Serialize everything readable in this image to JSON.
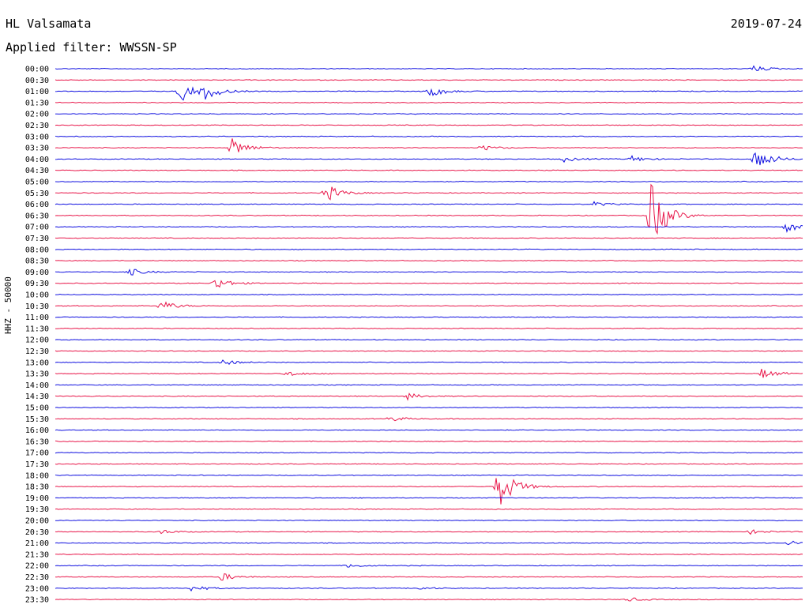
{
  "header": {
    "station": "HL Valsamata",
    "filter": "Applied filter: WWSSN-SP",
    "date": "2019-07-24",
    "channel": "HHZ - 50000"
  },
  "chart_data": {
    "type": "line",
    "title": "HL Valsamata",
    "subtitle": "Applied filter: WWSSN-SP",
    "ylabel": "HHZ - 50000",
    "row_labels": [
      "00:00",
      "00:30",
      "01:00",
      "01:30",
      "02:00",
      "02:30",
      "03:00",
      "03:30",
      "04:00",
      "04:30",
      "05:00",
      "05:30",
      "06:00",
      "06:30",
      "07:00",
      "07:30",
      "08:00",
      "08:30",
      "09:00",
      "09:30",
      "10:00",
      "10:30",
      "11:00",
      "11:30",
      "12:00",
      "12:30",
      "13:00",
      "13:30",
      "14:00",
      "14:30",
      "15:00",
      "15:30",
      "16:00",
      "16:30",
      "17:00",
      "17:30",
      "18:00",
      "18:30",
      "19:00",
      "19:30",
      "20:00",
      "20:30",
      "21:00",
      "21:30",
      "22:00",
      "22:30",
      "23:00",
      "23:30"
    ],
    "trace_colors": [
      "#1010e0",
      "#e8174a"
    ],
    "grid": false,
    "noise_level": 0.06,
    "events": [
      {
        "row": 0,
        "pos": 0.932,
        "amp": 0.6
      },
      {
        "row": 2,
        "pos": 0.165,
        "amp": 2.2
      },
      {
        "row": 2,
        "pos": 0.2,
        "amp": 1.4
      },
      {
        "row": 2,
        "pos": 0.5,
        "amp": 1.1
      },
      {
        "row": 7,
        "pos": 0.235,
        "amp": 1.8
      },
      {
        "row": 7,
        "pos": 0.57,
        "amp": 0.5
      },
      {
        "row": 8,
        "pos": 0.935,
        "amp": 2.5
      },
      {
        "row": 8,
        "pos": 0.68,
        "amp": 0.5
      },
      {
        "row": 8,
        "pos": 0.77,
        "amp": 0.6
      },
      {
        "row": 11,
        "pos": 0.36,
        "amp": 1.8
      },
      {
        "row": 12,
        "pos": 0.72,
        "amp": 0.4
      },
      {
        "row": 13,
        "pos": 0.795,
        "amp": 7.0
      },
      {
        "row": 14,
        "pos": 0.978,
        "amp": 1.0
      },
      {
        "row": 18,
        "pos": 0.095,
        "amp": 0.8
      },
      {
        "row": 19,
        "pos": 0.213,
        "amp": 1.2
      },
      {
        "row": 21,
        "pos": 0.14,
        "amp": 1.0
      },
      {
        "row": 26,
        "pos": 0.222,
        "amp": 0.6
      },
      {
        "row": 27,
        "pos": 0.31,
        "amp": 0.5
      },
      {
        "row": 27,
        "pos": 0.945,
        "amp": 0.9
      },
      {
        "row": 29,
        "pos": 0.47,
        "amp": 0.6
      },
      {
        "row": 31,
        "pos": 0.447,
        "amp": 0.5
      },
      {
        "row": 37,
        "pos": 0.59,
        "amp": 5.0
      },
      {
        "row": 41,
        "pos": 0.14,
        "amp": 0.4
      },
      {
        "row": 41,
        "pos": 0.93,
        "amp": 0.4
      },
      {
        "row": 42,
        "pos": 0.98,
        "amp": 0.5
      },
      {
        "row": 44,
        "pos": 0.39,
        "amp": 0.4
      },
      {
        "row": 45,
        "pos": 0.22,
        "amp": 0.8
      },
      {
        "row": 46,
        "pos": 0.18,
        "amp": 0.6
      },
      {
        "row": 46,
        "pos": 0.485,
        "amp": 0.3
      },
      {
        "row": 47,
        "pos": 0.765,
        "amp": 0.4
      }
    ]
  }
}
